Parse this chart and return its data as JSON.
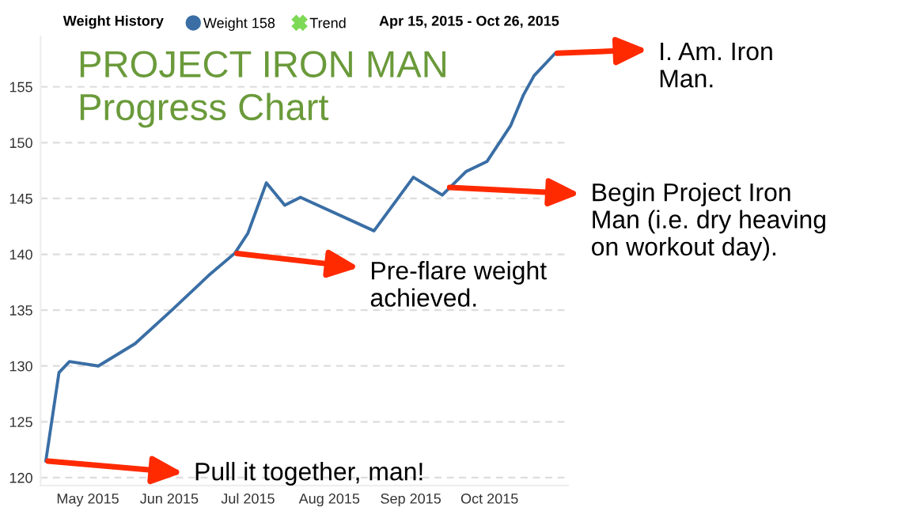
{
  "chart_data": {
    "type": "line",
    "title": "PROJECT IRON MAN\nProgress Chart",
    "subtitle": "Apr 15, 2015 - Oct 26, 2015",
    "legend_title": "Weight History",
    "x": [
      "2015-04-15",
      "2015-04-20",
      "2015-04-24",
      "2015-05-05",
      "2015-05-19",
      "2015-06-02",
      "2015-06-16",
      "2015-06-26",
      "2015-07-01",
      "2015-07-08",
      "2015-07-15",
      "2015-07-21",
      "2015-08-18",
      "2015-09-02",
      "2015-09-13",
      "2015-09-22",
      "2015-09-30",
      "2015-10-09",
      "2015-10-14",
      "2015-10-18",
      "2015-10-26"
    ],
    "series": [
      {
        "name": "Weight 158",
        "color": "#3a6ea5",
        "values": [
          121.5,
          129.4,
          130.4,
          130.0,
          132.0,
          135.0,
          138.1,
          140.1,
          141.9,
          146.4,
          144.4,
          145.1,
          142.1,
          146.9,
          145.3,
          147.4,
          148.3,
          151.5,
          154.3,
          156.0,
          158.0
        ]
      },
      {
        "name": "Trend",
        "color": "#7ed957",
        "marker": "cross",
        "values": [
          null,
          null,
          null,
          null,
          null,
          null,
          null,
          null,
          null,
          null,
          null,
          null,
          null,
          null,
          null,
          null,
          null,
          null,
          null,
          null,
          null
        ]
      }
    ],
    "xlim": [
      "2015-04-13",
      "2015-10-31"
    ],
    "xticks": [
      {
        "value": "2015-05-01",
        "label": "May 2015"
      },
      {
        "value": "2015-06-01",
        "label": "Jun 2015"
      },
      {
        "value": "2015-07-01",
        "label": "Jul 2015"
      },
      {
        "value": "2015-08-01",
        "label": "Aug 2015"
      },
      {
        "value": "2015-09-01",
        "label": "Sep 2015"
      },
      {
        "value": "2015-10-01",
        "label": "Oct 2015"
      }
    ],
    "ylim": [
      119.3,
      159.5
    ],
    "yticks": [
      120,
      125,
      130,
      135,
      140,
      145,
      150,
      155
    ],
    "grid": "y",
    "legend": "top left",
    "line_style": "solid",
    "annotations": [
      {
        "text": "Pull it together, man!",
        "x": "2015-04-15",
        "y": 121.5
      },
      {
        "text": "Pre-flare weight\nachieved.",
        "x": "2015-06-26",
        "y": 140.1
      },
      {
        "text": "Begin Project Iron\nMan (i.e. dry heaving\non workout day).",
        "x": "2015-09-15",
        "y": 146.0
      },
      {
        "text": "I. Am. Iron\nMan.",
        "x": "2015-10-26",
        "y": 158.0
      }
    ]
  }
}
